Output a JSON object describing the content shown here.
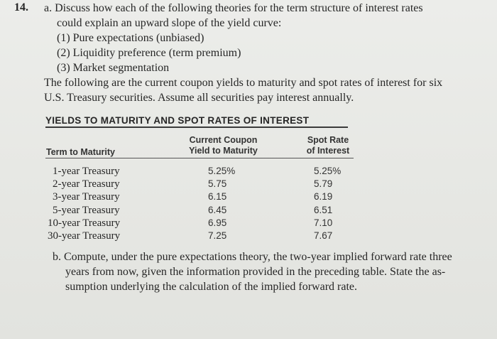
{
  "question": {
    "number": "14.",
    "part_a": {
      "line1": "a. Discuss how each of the following theories for the term structure of interest rates",
      "line2": "could explain an upward slope of the yield curve:",
      "items": [
        "(1) Pure expectations (unbiased)",
        "(2) Liquidity preference (term premium)",
        "(3) Market segmentation"
      ]
    },
    "intro": {
      "line1": "The following are the current coupon yields to maturity and spot rates of interest for six",
      "line2": "U.S. Treasury securities. Assume all securities pay interest annually."
    },
    "table": {
      "title": "YIELDS TO MATURITY AND SPOT RATES OF INTEREST",
      "col1_header": "Term to Maturity",
      "col2_header_l1": "Current Coupon",
      "col2_header_l2": "Yield to Maturity",
      "col3_header_l1": "Spot Rate",
      "col3_header_l2": "of Interest",
      "rows": [
        {
          "term": "1-year Treasury",
          "ytm": "5.25%",
          "spot": "5.25%"
        },
        {
          "term": "2-year Treasury",
          "ytm": "5.75",
          "spot": "5.79"
        },
        {
          "term": "3-year Treasury",
          "ytm": "6.15",
          "spot": "6.19"
        },
        {
          "term": "5-year Treasury",
          "ytm": "6.45",
          "spot": "6.51"
        },
        {
          "term": "10-year Treasury",
          "ytm": "6.95",
          "spot": "7.10"
        },
        {
          "term": "30-year Treasury",
          "ytm": "7.25",
          "spot": "7.67"
        }
      ]
    },
    "part_b": {
      "line1": "b. Compute, under the pure expectations theory, the two-year implied forward rate three",
      "line2": "years from now, given the information provided in the preceding table. State the as-",
      "line3": "sumption underlying the calculation of the implied forward rate."
    }
  }
}
